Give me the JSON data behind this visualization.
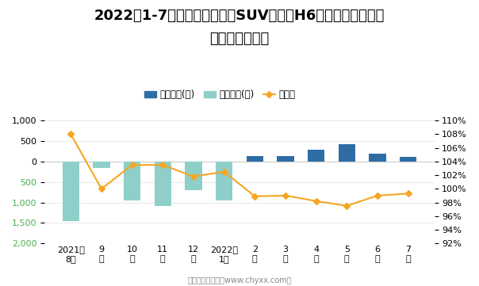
{
  "title_line1": "2022年1-7月长城旗下最畅销SUV（哈弗H6）近一年库存情况",
  "title_line2": "及产销率统计图",
  "categories": [
    "2021年\n8月",
    "9\n月",
    "10\n月",
    "11\n月",
    "12\n月",
    "2022年\n1月",
    "2\n月",
    "3\n月",
    "4\n月",
    "5\n月",
    "6\n月",
    "7\n月"
  ],
  "jiaya_values": [
    0,
    0,
    0,
    0,
    0,
    0,
    130,
    130,
    280,
    430,
    200,
    120
  ],
  "qingcang_values": [
    -1450,
    -150,
    -950,
    -1080,
    -700,
    -950,
    0,
    0,
    0,
    0,
    0,
    0
  ],
  "production_rate": [
    1.08,
    1.0,
    1.035,
    1.035,
    1.018,
    1.025,
    0.989,
    0.99,
    0.982,
    0.975,
    0.99,
    0.993
  ],
  "jiaya_color": "#2e6da4",
  "qingcang_color": "#8ecfc9",
  "line_color": "#f5a623",
  "ylim_left": [
    -2000,
    1000
  ],
  "ylim_right": [
    0.92,
    1.1
  ],
  "yticks_left": [
    1000,
    500,
    0,
    -500,
    -1000,
    -1500,
    -2000
  ],
  "yticks_right": [
    0.92,
    0.94,
    0.96,
    0.98,
    1.0,
    1.02,
    1.04,
    1.06,
    1.08,
    1.1
  ],
  "legend_jiaya": "积压库存(辆)",
  "legend_qingcang": "清仓库存(辆)",
  "legend_rate": "产销率",
  "footer": "制图：智研咨询（www.chyxx.com）",
  "bg_color": "#ffffff",
  "title_fontsize": 13,
  "label_fontsize": 8,
  "legend_fontsize": 8.5
}
